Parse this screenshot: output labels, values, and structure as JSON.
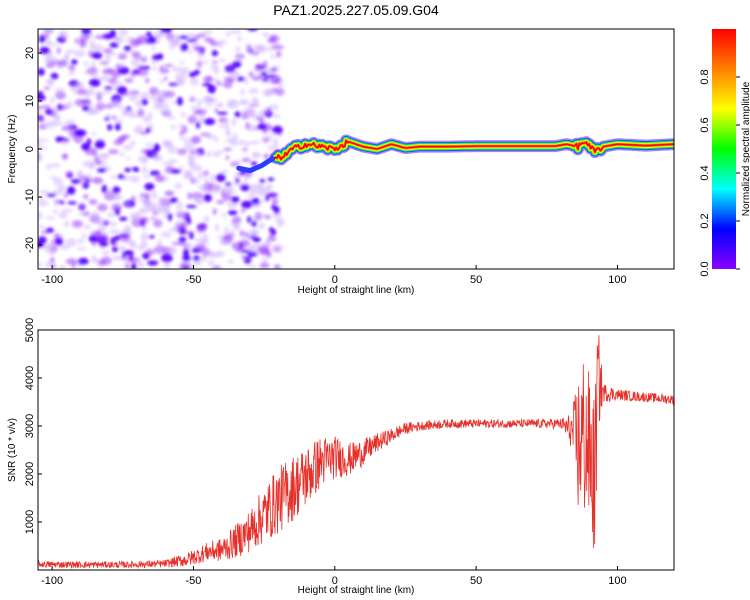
{
  "figure": {
    "title": "PAZ1.2025.227.05.09.G04"
  },
  "chart_data": [
    {
      "type": "heatmap",
      "id": "spectrogram",
      "xlabel": "Height of straight line (km)",
      "ylabel": "Frequency (Hz)",
      "xlim": [
        -105,
        120
      ],
      "ylim": [
        -25,
        25
      ],
      "x_ticks": [
        -100,
        -50,
        0,
        50,
        100
      ],
      "y_ticks": [
        20,
        10,
        0,
        -10,
        -20
      ],
      "colorbar": {
        "label": "Normalized spectral amplitude",
        "range": [
          0.0,
          1.0
        ],
        "ticks": [
          0.0,
          0.2,
          0.4,
          0.6,
          0.8
        ],
        "colormap": [
          "#8a00ff",
          "#0000ff",
          "#00ffff",
          "#00ff00",
          "#ffff00",
          "#ff8000",
          "#ff0000"
        ]
      },
      "noise_region": {
        "x_range": [
          -105,
          -19
        ],
        "amplitude_range": [
          0.0,
          0.15
        ]
      },
      "signal_track": {
        "x": [
          -21,
          -18,
          -15,
          -10,
          -5,
          0,
          5,
          10,
          15,
          20,
          25,
          30,
          40,
          50,
          60,
          70,
          78,
          82,
          86,
          88,
          90,
          92,
          95,
          100,
          110,
          120
        ],
        "frequency": [
          -2,
          -1.5,
          0,
          1,
          0.5,
          0,
          1.5,
          0.5,
          0,
          1,
          0.2,
          0.5,
          0.5,
          0.6,
          0.6,
          0.6,
          0.6,
          1,
          0.5,
          1.5,
          0.5,
          -0.5,
          0.5,
          1,
          0.7,
          1
        ],
        "peak_amplitude": 1.0
      }
    },
    {
      "type": "line",
      "id": "snr",
      "xlabel": "Height of straight line (km)",
      "ylabel": "SNR (10 * v/v)",
      "xlim": [
        -105,
        120
      ],
      "ylim": [
        0,
        5000
      ],
      "x_ticks": [
        -100,
        -50,
        0,
        50,
        100
      ],
      "y_ticks": [
        1000,
        2000,
        3000,
        4000,
        5000
      ],
      "color": "#e8302a",
      "series": [
        {
          "x": [
            -105,
            -90,
            -75,
            -60,
            -52,
            -45,
            -40,
            -35,
            -30,
            -25,
            -20,
            -15,
            -10,
            -5,
            0,
            5,
            10,
            15,
            20,
            25,
            30,
            40,
            50,
            60,
            70,
            80,
            84,
            86,
            88,
            90,
            92,
            93,
            95,
            100,
            110,
            120
          ],
          "values": [
            120,
            110,
            110,
            130,
            220,
            380,
            420,
            600,
            820,
            1150,
            1450,
            1700,
            1950,
            2250,
            2350,
            2300,
            2450,
            2650,
            2800,
            2950,
            3000,
            3050,
            3050,
            3050,
            3050,
            3050,
            2900,
            2600,
            2800,
            2500,
            1800,
            4000,
            3700,
            3650,
            3600,
            3550
          ],
          "noise_amplitude": [
            70,
            70,
            70,
            80,
            150,
            200,
            250,
            350,
            450,
            600,
            700,
            700,
            650,
            550,
            450,
            350,
            280,
            200,
            150,
            120,
            100,
            90,
            90,
            90,
            90,
            110,
            400,
            1500,
            1800,
            1600,
            1800,
            1200,
            200,
            120,
            100,
            100
          ]
        }
      ]
    }
  ]
}
